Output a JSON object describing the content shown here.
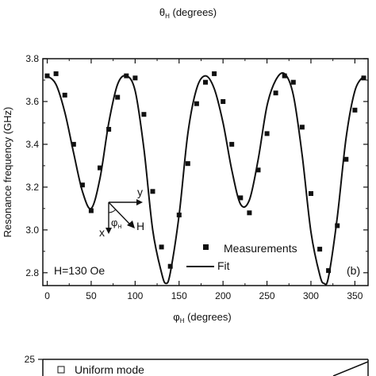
{
  "top_axis_label": {
    "main": "θ",
    "sub": "H",
    "rest": " (degrees)"
  },
  "chart_data": {
    "type": "scatter",
    "xlabel": {
      "main": "φ",
      "sub": "H",
      "rest": " (degrees)"
    },
    "ylabel": "Resonance frequency (GHz)",
    "xlim": [
      -5,
      365
    ],
    "ylim": [
      2.74,
      3.8
    ],
    "xticks": [
      0,
      50,
      100,
      150,
      200,
      250,
      300,
      350
    ],
    "yticks": [
      2.8,
      3.0,
      3.2,
      3.4,
      3.6,
      3.8
    ],
    "ytick_labels": [
      "2.8",
      "3.0",
      "3.2",
      "3.4",
      "3.6",
      "3.8"
    ],
    "legend": {
      "position": "bottom-right",
      "measurements": "Measurements",
      "fit": "Fit"
    },
    "annotations": {
      "field": "H=130 Oe",
      "panel": "(b)"
    },
    "inset": {
      "y": "y",
      "x": "x",
      "phi": "φ",
      "phi_sub": "H",
      "H": "H"
    },
    "series": [
      {
        "name": "Measurements",
        "kind": "scatter",
        "x": [
          0,
          10,
          20,
          30,
          40,
          50,
          60,
          70,
          80,
          90,
          100,
          110,
          120,
          130,
          140,
          150,
          160,
          170,
          180,
          190,
          200,
          210,
          220,
          230,
          240,
          250,
          260,
          270,
          280,
          290,
          300,
          310,
          320,
          330,
          340,
          350,
          360
        ],
        "y": [
          3.72,
          3.73,
          3.63,
          3.4,
          3.21,
          3.09,
          3.29,
          3.47,
          3.62,
          3.72,
          3.71,
          3.54,
          3.18,
          2.92,
          2.83,
          3.07,
          3.31,
          3.59,
          3.69,
          3.73,
          3.6,
          3.4,
          3.15,
          3.08,
          3.28,
          3.45,
          3.64,
          3.72,
          3.69,
          3.48,
          3.17,
          2.91,
          2.81,
          3.02,
          3.33,
          3.56,
          3.71
        ]
      },
      {
        "name": "Fit",
        "kind": "line",
        "x": [
          0,
          10,
          20,
          30,
          40,
          50,
          60,
          70,
          80,
          90,
          100,
          110,
          120,
          130,
          135,
          140,
          150,
          160,
          170,
          180,
          190,
          200,
          210,
          220,
          230,
          240,
          250,
          260,
          270,
          280,
          290,
          300,
          310,
          315,
          320,
          330,
          340,
          350,
          360
        ],
        "y": [
          3.72,
          3.68,
          3.55,
          3.36,
          3.18,
          3.1,
          3.24,
          3.5,
          3.68,
          3.72,
          3.65,
          3.38,
          3.0,
          2.8,
          2.75,
          2.8,
          3.07,
          3.45,
          3.66,
          3.72,
          3.66,
          3.5,
          3.28,
          3.12,
          3.14,
          3.33,
          3.58,
          3.7,
          3.73,
          3.63,
          3.35,
          2.99,
          2.79,
          2.75,
          2.78,
          3.06,
          3.43,
          3.65,
          3.72
        ]
      }
    ]
  },
  "lower_chart": {
    "ytick_label": "25",
    "legend_label": "Uniform mode"
  }
}
